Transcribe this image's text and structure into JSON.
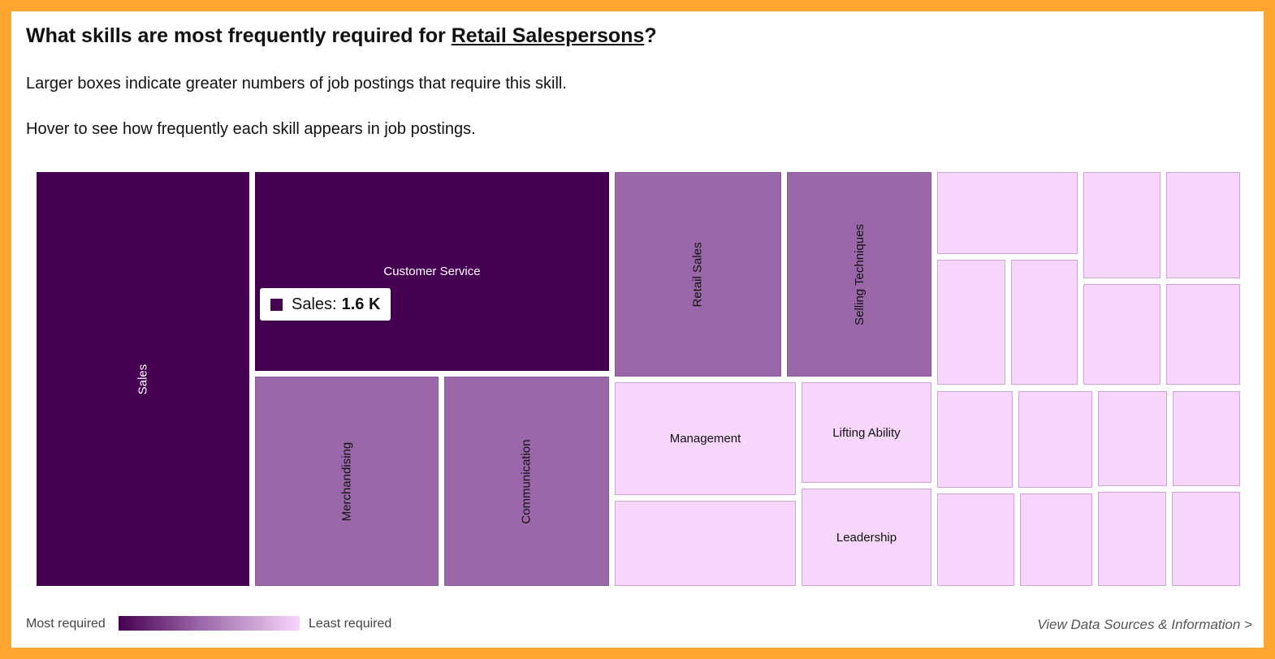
{
  "header": {
    "title_prefix": "What skills are most frequently required for ",
    "title_link": "Retail Salespersons",
    "title_suffix": "?",
    "line1": "Larger boxes indicate greater numbers of job postings that require this skill.",
    "line2": "Hover to see how frequently each skill appears in job postings."
  },
  "colors": {
    "frame": "#ffa630",
    "most": "#460052",
    "mid": "#9a67a8",
    "least": "#f7d6fb"
  },
  "tooltip": {
    "label": "Sales:",
    "value": "1.6 K"
  },
  "legend": {
    "most": "Most required",
    "least": "Least required"
  },
  "footer": {
    "link": "View Data Sources & Information >"
  },
  "chart_data": {
    "type": "treemap",
    "title": "What skills are most frequently required for Retail Salespersons?",
    "value_shown": {
      "category": "Sales",
      "value": 1600
    },
    "categories": [
      "Sales",
      "Customer Service",
      "Merchandising",
      "Communication",
      "Retail Sales",
      "Selling Techniques",
      "Management",
      "Lifting Ability",
      "Leadership",
      "",
      "",
      "",
      "",
      "",
      "",
      "",
      "",
      "",
      "",
      "",
      "",
      "",
      "",
      "",
      "",
      "",
      ""
    ],
    "level": [
      "most",
      "most",
      "mid",
      "mid",
      "mid",
      "mid",
      "least",
      "least",
      "least",
      "least",
      "least",
      "least",
      "least",
      "least",
      "least",
      "least",
      "least",
      "least",
      "least",
      "least",
      "least",
      "least",
      "least",
      "least",
      "least",
      "least",
      "least"
    ],
    "color_scale": {
      "from": "Most required",
      "to": "Least required"
    }
  }
}
